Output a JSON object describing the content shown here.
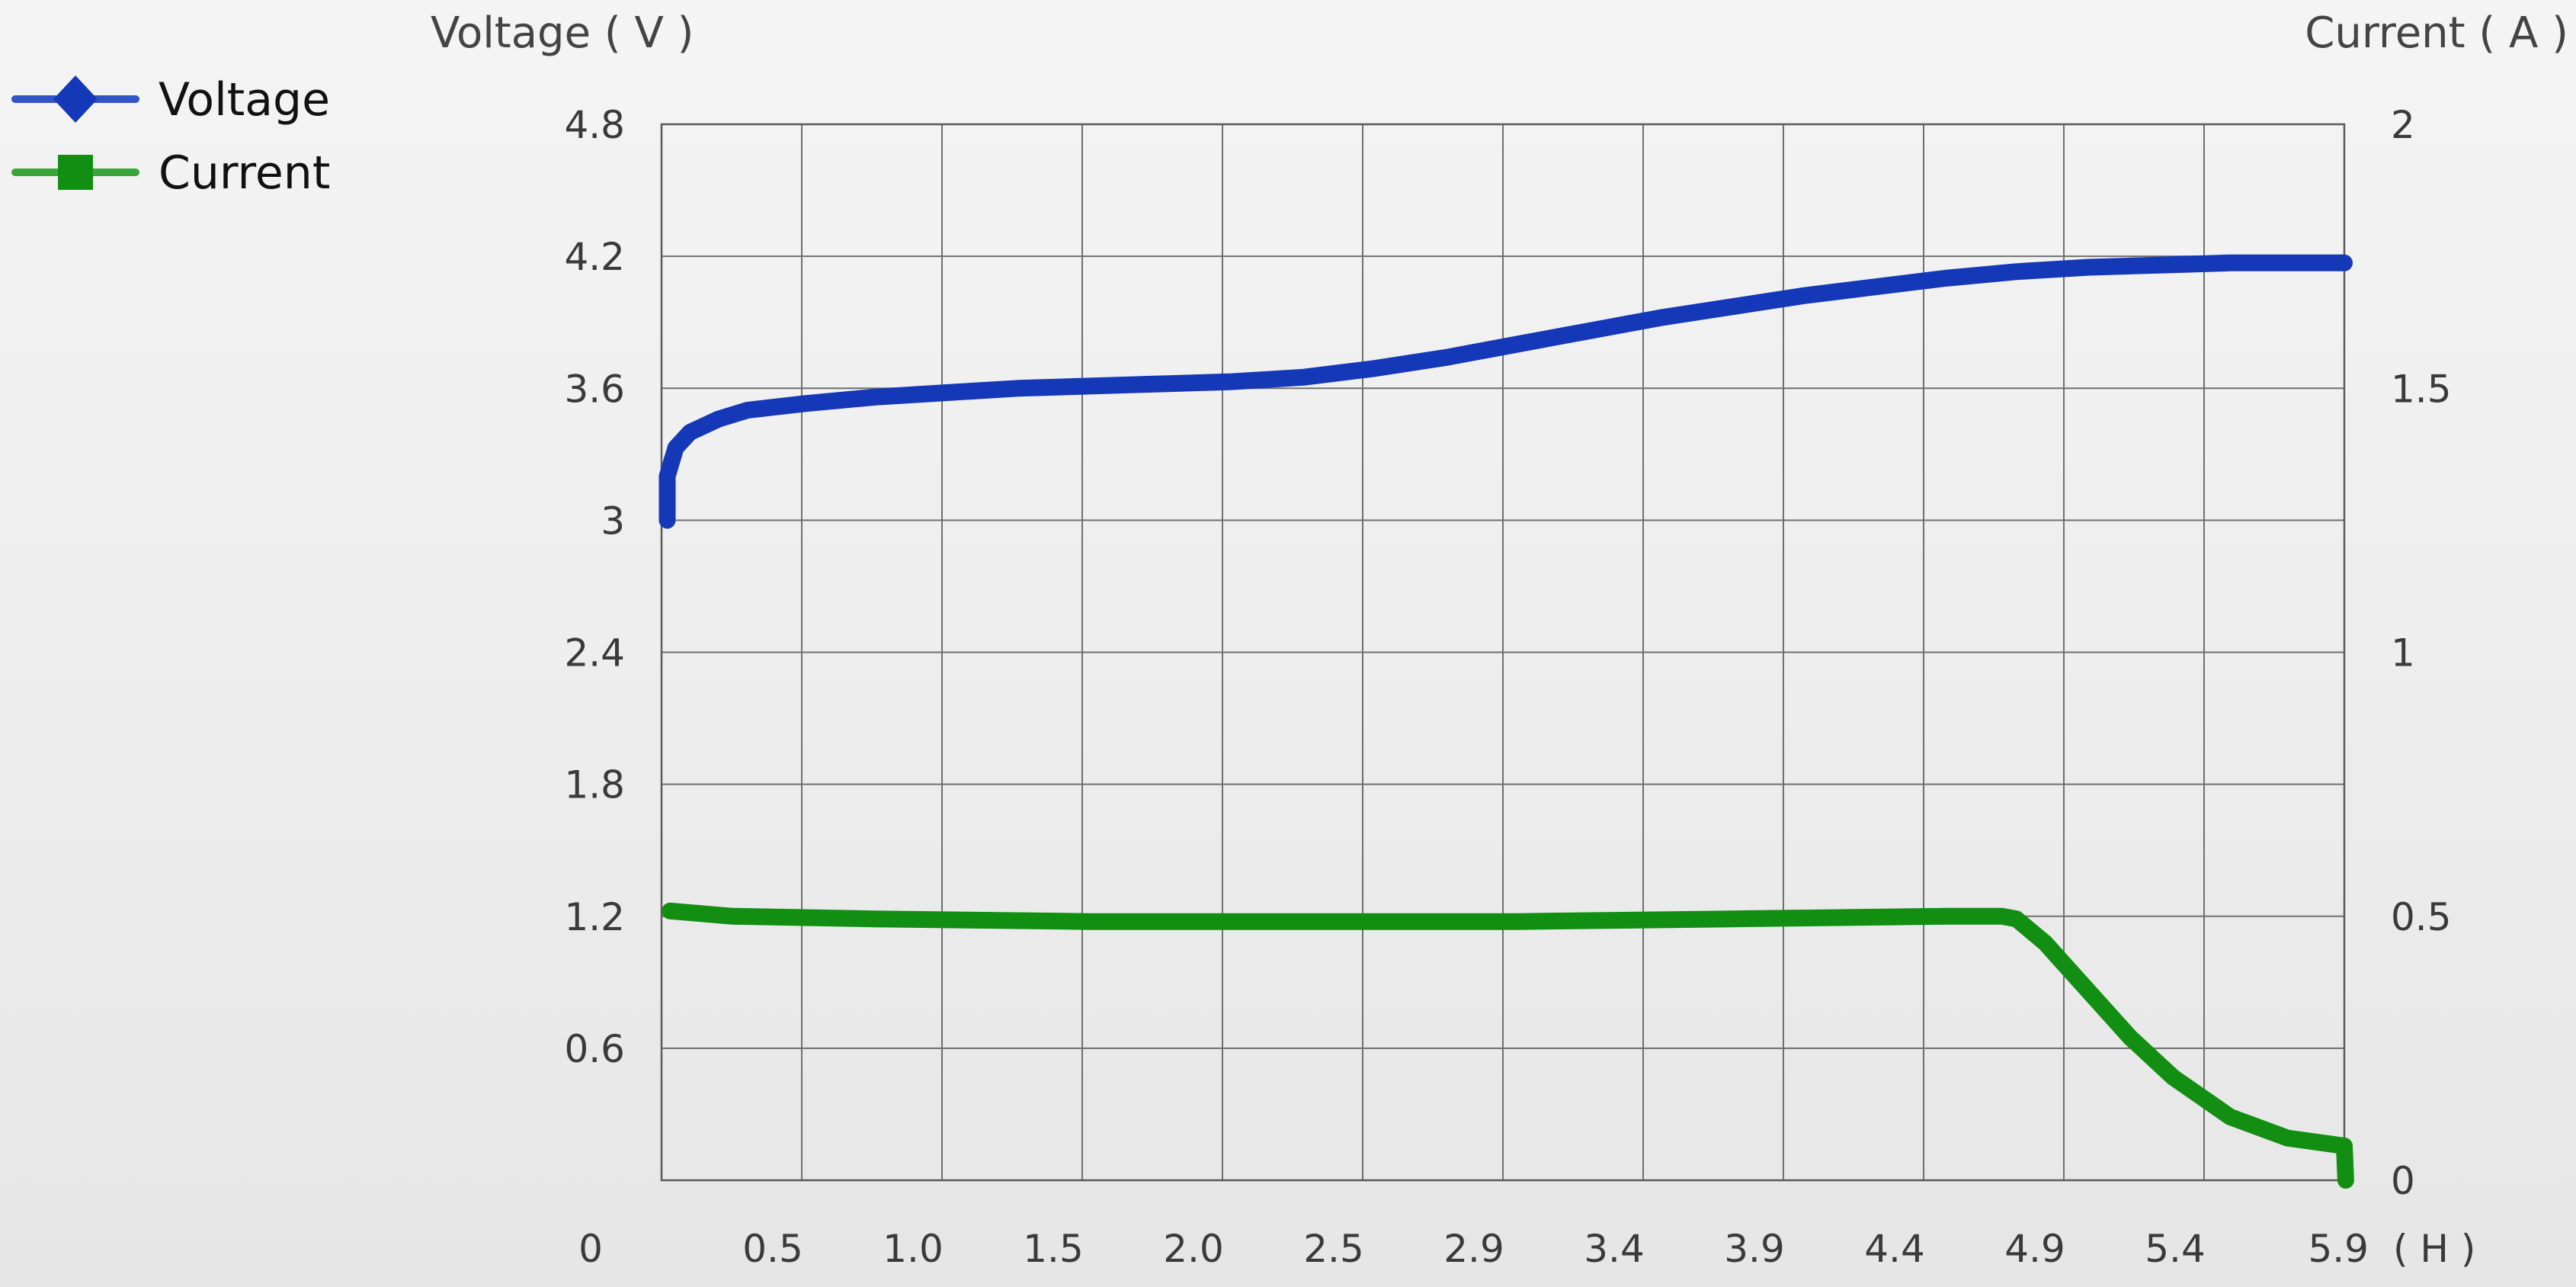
{
  "chart_data": {
    "type": "line",
    "title": "",
    "grid": true,
    "legend_position": "top-left",
    "y_left": {
      "label": "Voltage ( V )",
      "range": [
        0,
        4.8
      ],
      "ticks": [
        "4.8",
        "4.2",
        "3.6",
        "3",
        "2.4",
        "1.8",
        "1.2",
        "0.6"
      ],
      "tick_values": [
        4.8,
        4.2,
        3.6,
        3.0,
        2.4,
        1.8,
        1.2,
        0.6
      ]
    },
    "y_right": {
      "label": "Current ( A )",
      "range": [
        0,
        2
      ],
      "ticks": [
        "2",
        "1.5",
        "1",
        "0.5",
        "0"
      ],
      "tick_values": [
        2,
        1.5,
        1,
        0.5,
        0
      ]
    },
    "x": {
      "unit": "( H )",
      "range": [
        0,
        5.9
      ],
      "tick_labels": [
        "0",
        "0.5",
        "1.0",
        "1.5",
        "2.0",
        "2.5",
        "2.9",
        "3.4",
        "3.9",
        "4.4",
        "4.9",
        "5.4",
        "5.9"
      ],
      "tick_values": [
        0,
        0.5,
        1.0,
        1.5,
        2.0,
        2.5,
        2.9,
        3.4,
        3.9,
        4.4,
        4.9,
        5.4,
        5.9
      ]
    },
    "series": [
      {
        "name": "Voltage",
        "axis": "left",
        "color": "#1538b8",
        "marker": "diamond",
        "points": [
          [
            0.02,
            3.0
          ],
          [
            0.02,
            3.2
          ],
          [
            0.05,
            3.33
          ],
          [
            0.1,
            3.4
          ],
          [
            0.2,
            3.46
          ],
          [
            0.3,
            3.5
          ],
          [
            0.5,
            3.53
          ],
          [
            0.75,
            3.56
          ],
          [
            1.0,
            3.58
          ],
          [
            1.25,
            3.6
          ],
          [
            1.5,
            3.61
          ],
          [
            1.75,
            3.62
          ],
          [
            2.0,
            3.63
          ],
          [
            2.25,
            3.65
          ],
          [
            2.5,
            3.69
          ],
          [
            2.75,
            3.74
          ],
          [
            3.0,
            3.8
          ],
          [
            3.25,
            3.86
          ],
          [
            3.5,
            3.92
          ],
          [
            3.75,
            3.97
          ],
          [
            4.0,
            4.02
          ],
          [
            4.25,
            4.06
          ],
          [
            4.5,
            4.1
          ],
          [
            4.75,
            4.13
          ],
          [
            5.0,
            4.15
          ],
          [
            5.25,
            4.16
          ],
          [
            5.5,
            4.17
          ],
          [
            5.9,
            4.17
          ]
        ]
      },
      {
        "name": "Current",
        "axis": "right",
        "color": "#128f12",
        "marker": "square",
        "points": [
          [
            0.03,
            0.51
          ],
          [
            0.25,
            0.5
          ],
          [
            0.75,
            0.495
          ],
          [
            1.5,
            0.49
          ],
          [
            2.25,
            0.49
          ],
          [
            3.0,
            0.49
          ],
          [
            3.75,
            0.495
          ],
          [
            4.5,
            0.5
          ],
          [
            4.7,
            0.5
          ],
          [
            4.75,
            0.495
          ],
          [
            4.85,
            0.45
          ],
          [
            5.0,
            0.36
          ],
          [
            5.15,
            0.27
          ],
          [
            5.3,
            0.195
          ],
          [
            5.5,
            0.12
          ],
          [
            5.7,
            0.08
          ],
          [
            5.9,
            0.065
          ],
          [
            5.905,
            0.0
          ]
        ]
      }
    ]
  }
}
